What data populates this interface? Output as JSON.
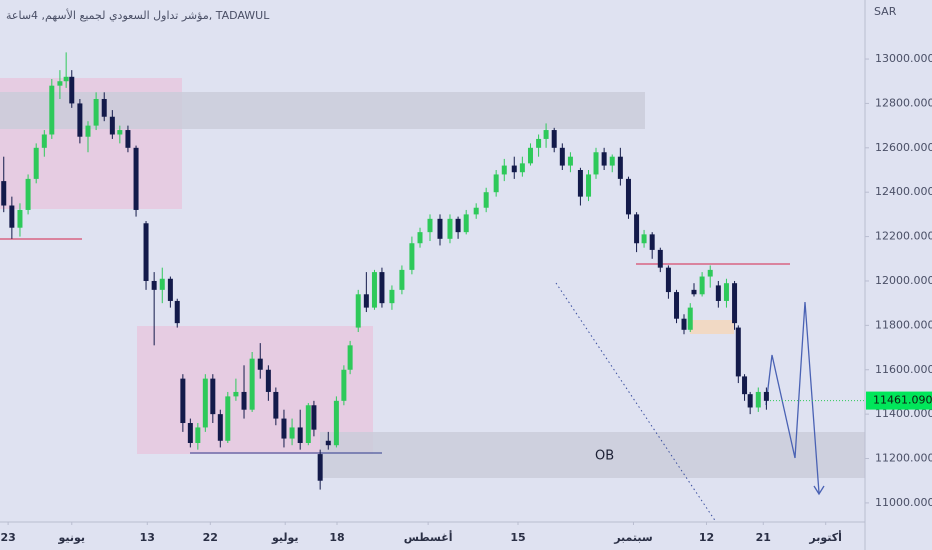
{
  "chart_data": {
    "type": "candlestick",
    "title": "مؤشر تداول السعودي لجميع الأسهم, 4ساعة, TADAWUL",
    "axis_unit": "SAR",
    "annotations": [
      "OB"
    ],
    "up_color": "#2ec95a",
    "down_color": "#131a4a",
    "last_price": {
      "value": 11461.09,
      "label": "11461.090"
    },
    "ylim": [
      10914,
      13266
    ],
    "yticks": [
      {
        "value": 11000,
        "label": "11000.000"
      },
      {
        "value": 11200,
        "label": "11200.000"
      },
      {
        "value": 11400,
        "label": "11400.000"
      },
      {
        "value": 11600,
        "label": "11600.000"
      },
      {
        "value": 11800,
        "label": "11800.000"
      },
      {
        "value": 12000,
        "label": "12000.000"
      },
      {
        "value": 12200,
        "label": "12200.000"
      },
      {
        "value": 12400,
        "label": "12400.000"
      },
      {
        "value": 12600,
        "label": "12600.000"
      },
      {
        "value": 12800,
        "label": "12800.000"
      },
      {
        "value": 13000,
        "label": "13000.000"
      }
    ],
    "xlim": [
      141.7,
      280.3
    ],
    "xticks": [
      {
        "value": 143.0,
        "label": "23"
      },
      {
        "value": 153.2,
        "label": "يونيو"
      },
      {
        "value": 165.3,
        "label": "13"
      },
      {
        "value": 175.4,
        "label": "22"
      },
      {
        "value": 187.4,
        "label": "يوليو"
      },
      {
        "value": 195.7,
        "label": "18"
      },
      {
        "value": 210.3,
        "label": "أغسطس"
      },
      {
        "value": 224.7,
        "label": "15"
      },
      {
        "value": 243.2,
        "label": "سبتمبر"
      },
      {
        "value": 254.9,
        "label": "12"
      },
      {
        "value": 264.0,
        "label": "21"
      },
      {
        "value": 274.0,
        "label": "أكتوبر"
      }
    ],
    "x": [
      142.3,
      143.6,
      144.9,
      146.2,
      147.5,
      148.8,
      150.0,
      151.3,
      152.3,
      153.2,
      154.5,
      155.8,
      157.1,
      158.4,
      159.7,
      160.9,
      162.2,
      163.5,
      165.1,
      166.4,
      167.7,
      169.0,
      170.1,
      171.0,
      172.2,
      173.4,
      174.6,
      175.8,
      177.0,
      178.2,
      179.5,
      180.8,
      182.1,
      183.4,
      184.7,
      185.9,
      187.2,
      188.5,
      189.8,
      191.1,
      192.0,
      193.0,
      194.3,
      195.6,
      196.8,
      197.8,
      199.1,
      200.4,
      201.7,
      202.9,
      204.5,
      206.1,
      207.7,
      209.0,
      210.6,
      212.2,
      213.8,
      215.1,
      216.4,
      218.0,
      219.6,
      221.2,
      222.5,
      224.1,
      225.4,
      226.7,
      228.0,
      229.2,
      230.5,
      231.8,
      233.1,
      234.7,
      236.0,
      237.2,
      238.5,
      239.8,
      241.1,
      242.4,
      243.7,
      244.9,
      246.2,
      247.5,
      248.8,
      250.1,
      251.3,
      252.3,
      252.9,
      254.2,
      255.5,
      256.8,
      258.1,
      259.4,
      260.0,
      261.0,
      261.9,
      263.2,
      264.5
    ],
    "open": [
      12450,
      12340,
      12240,
      12320,
      12460,
      12600,
      12660,
      12880,
      12900,
      12920,
      12800,
      12650,
      12700,
      12820,
      12740,
      12660,
      12680,
      12600,
      12260,
      12000,
      11960,
      12010,
      11910,
      11560,
      11360,
      11270,
      11340,
      11560,
      11400,
      11280,
      11480,
      11500,
      11420,
      11650,
      11600,
      11500,
      11380,
      11290,
      11340,
      11270,
      11440,
      11220,
      11280,
      11260,
      11460,
      11600,
      11790,
      11940,
      11880,
      12040,
      11900,
      11960,
      12050,
      12170,
      12220,
      12280,
      12190,
      12280,
      12220,
      12300,
      12330,
      12400,
      12480,
      12520,
      12490,
      12530,
      12600,
      12640,
      12680,
      12600,
      12520,
      12500,
      12380,
      12480,
      12580,
      12520,
      12560,
      12460,
      12300,
      12170,
      12210,
      12140,
      12060,
      11950,
      11830,
      11780,
      11960,
      11940,
      12020,
      11980,
      11910,
      11990,
      11790,
      11570,
      11490,
      11430,
      11500
    ],
    "high": [
      12560,
      12380,
      12350,
      12480,
      12620,
      12680,
      12910,
      12950,
      13030,
      12950,
      12820,
      12720,
      12850,
      12850,
      12770,
      12700,
      12700,
      12610,
      12270,
      12040,
      12060,
      12020,
      11920,
      11580,
      11380,
      11360,
      11580,
      11580,
      11420,
      11500,
      11560,
      11620,
      11680,
      11720,
      11620,
      11520,
      11420,
      11380,
      11420,
      11450,
      11460,
      11240,
      11320,
      11480,
      11620,
      11730,
      11960,
      12040,
      12050,
      12060,
      11980,
      12070,
      12200,
      12240,
      12300,
      12300,
      12300,
      12290,
      12320,
      12350,
      12420,
      12500,
      12550,
      12560,
      12560,
      12620,
      12660,
      12710,
      12690,
      12620,
      12580,
      12510,
      12500,
      12600,
      12600,
      12570,
      12600,
      12470,
      12310,
      12230,
      12220,
      12150,
      12070,
      11960,
      11850,
      11900,
      11990,
      12040,
      12070,
      12000,
      12010,
      12000,
      11800,
      11580,
      11500,
      11520,
      11520
    ],
    "low": [
      12310,
      12190,
      12200,
      12300,
      12440,
      12560,
      12640,
      12820,
      12870,
      12780,
      12620,
      12580,
      12680,
      12720,
      12640,
      12620,
      12580,
      12290,
      11960,
      11710,
      11900,
      11880,
      11790,
      11320,
      11250,
      11240,
      11320,
      11360,
      11250,
      11270,
      11460,
      11380,
      11410,
      11560,
      11460,
      11350,
      11250,
      11260,
      11240,
      11260,
      11300,
      11060,
      11240,
      11250,
      11440,
      11580,
      11770,
      11860,
      11870,
      11880,
      11870,
      11940,
      12030,
      12150,
      12180,
      12160,
      12170,
      12190,
      12210,
      12280,
      12310,
      12380,
      12450,
      12460,
      12470,
      12520,
      12560,
      12600,
      12580,
      12500,
      12490,
      12340,
      12360,
      12460,
      12500,
      12490,
      12430,
      12280,
      12130,
      12150,
      12100,
      12040,
      11920,
      11810,
      11760,
      11770,
      11930,
      11930,
      11970,
      11880,
      11880,
      11780,
      11540,
      11460,
      11400,
      11410,
      11420
    ],
    "close": [
      12340,
      12240,
      12320,
      12460,
      12600,
      12660,
      12880,
      12900,
      12920,
      12800,
      12650,
      12700,
      12820,
      12740,
      12660,
      12680,
      12600,
      12320,
      12000,
      11960,
      12010,
      11910,
      11810,
      11360,
      11270,
      11340,
      11560,
      11400,
      11280,
      11480,
      11500,
      11420,
      11650,
      11600,
      11500,
      11380,
      11290,
      11340,
      11270,
      11440,
      11330,
      11100,
      11260,
      11460,
      11600,
      11710,
      11940,
      11880,
      12040,
      11900,
      11960,
      12050,
      12170,
      12220,
      12280,
      12190,
      12280,
      12220,
      12300,
      12330,
      12400,
      12480,
      12520,
      12490,
      12530,
      12600,
      12640,
      12680,
      12600,
      12520,
      12560,
      12380,
      12480,
      12580,
      12520,
      12560,
      12460,
      12300,
      12170,
      12210,
      12140,
      12060,
      11950,
      11830,
      11780,
      11880,
      11940,
      12020,
      12050,
      11910,
      11990,
      11810,
      11570,
      11490,
      11430,
      11500,
      11460
    ]
  }
}
